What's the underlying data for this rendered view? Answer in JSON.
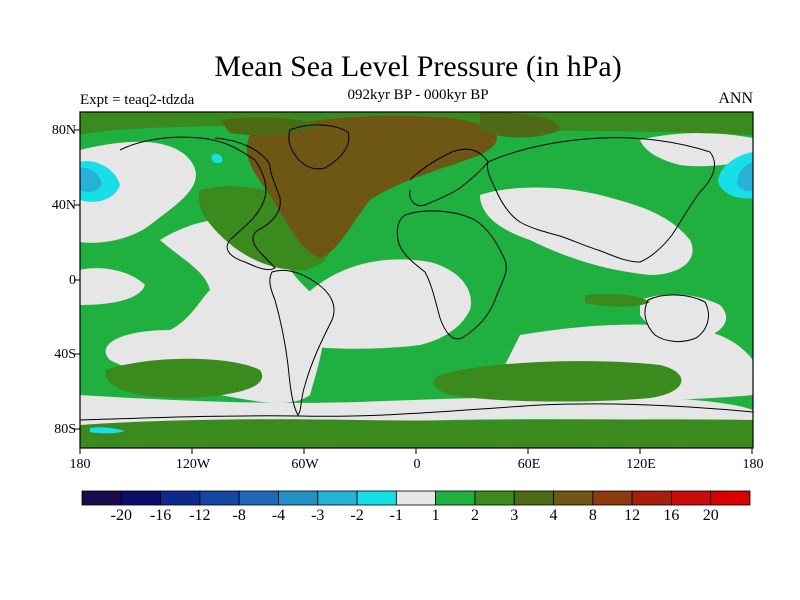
{
  "title": "Mean Sea Level Pressure (in hPa)",
  "subtitle": "092kyr BP - 000kyr BP",
  "experiment": "Expt = teaq2-tdzda",
  "season": "ANN",
  "lat_labels": [
    "80N",
    "40N",
    "0",
    "40S",
    "80S"
  ],
  "lon_labels": [
    "180",
    "120W",
    "60W",
    "0",
    "60E",
    "120E",
    "180"
  ],
  "colorbar": {
    "labels": [
      "-20",
      "-16",
      "-12",
      "-8",
      "-4",
      "-3",
      "-2",
      "-1",
      "1",
      "2",
      "3",
      "4",
      "8",
      "12",
      "16",
      "20"
    ],
    "colors": [
      "#1a0a4e",
      "#0a0f6a",
      "#0c2a8c",
      "#1546a4",
      "#1d69b8",
      "#2390c6",
      "#25b2d6",
      "#17dfe8",
      "#e6e6e6",
      "#20b040",
      "#3a8a1e",
      "#4f6a14",
      "#6e5614",
      "#8c3a10",
      "#a81e0c",
      "#c80c0c",
      "#d90000"
    ]
  },
  "palette": {
    "neutral": "#e6e6e6",
    "pos2": "#20b040",
    "pos3": "#3a8a1e",
    "pos4": "#4f6a14",
    "pos8": "#6e5614",
    "neg2": "#25b2d6",
    "neg1": "#17dfe8"
  }
}
